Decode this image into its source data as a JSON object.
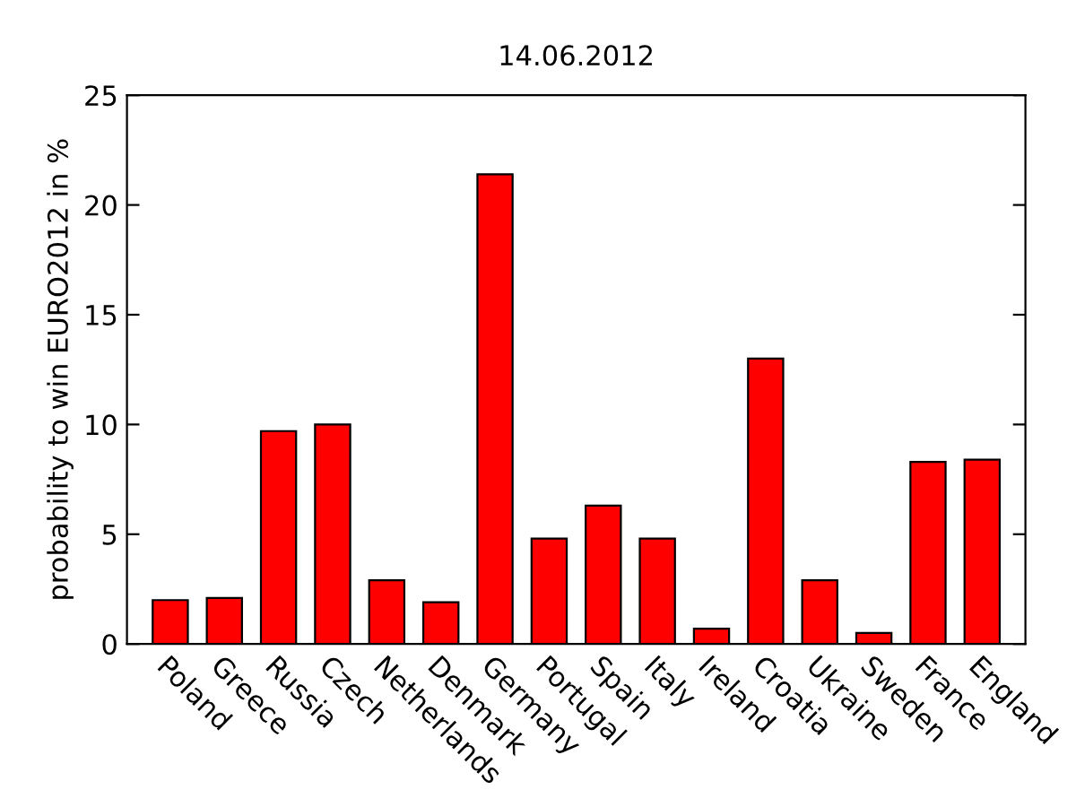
{
  "chart_data": {
    "type": "bar",
    "title": "14.06.2012",
    "ylabel": "probability to win EURO2012 in %",
    "categories": [
      "Poland",
      "Greece",
      "Russia",
      "Czech",
      "Netherlands",
      "Denmark",
      "Germany",
      "Portugal",
      "Spain",
      "Italy",
      "Ireland",
      "Croatia",
      "Ukraine",
      "Sweden",
      "France",
      "England"
    ],
    "values": [
      2.0,
      2.1,
      9.7,
      10.0,
      2.9,
      1.9,
      21.4,
      4.8,
      6.3,
      4.8,
      0.7,
      13.0,
      2.9,
      0.5,
      8.3,
      8.4
    ],
    "color": "#ff0000",
    "ylim": [
      0,
      25
    ],
    "yticks": [
      0,
      5,
      10,
      15,
      20,
      25
    ],
    "grid": false,
    "legend": false
  }
}
